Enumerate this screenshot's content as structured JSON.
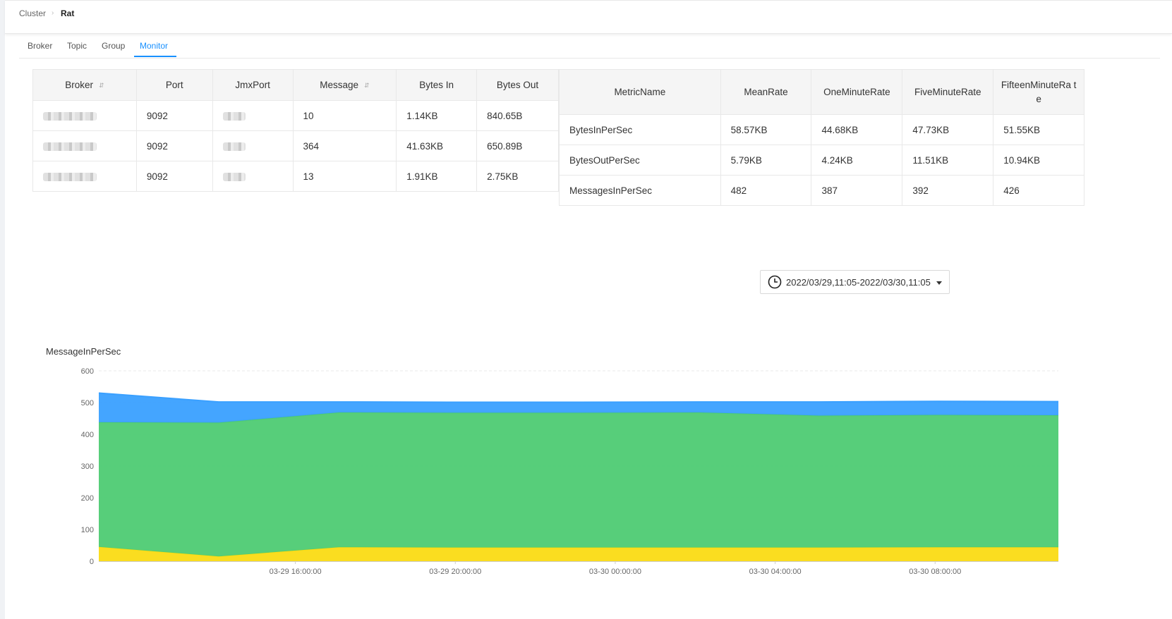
{
  "breadcrumb": {
    "root": "Cluster",
    "separator": "›",
    "current": "Rat"
  },
  "tabs": [
    {
      "label": "Broker"
    },
    {
      "label": "Topic"
    },
    {
      "label": "Group"
    },
    {
      "label": "Monitor",
      "active": true
    }
  ],
  "broker_table": {
    "headers": [
      "Broker",
      "Port",
      "JmxPort",
      "Message",
      "Bytes In",
      "Bytes Out"
    ],
    "rows": [
      {
        "port": "9092",
        "message": "10",
        "bytes_in": "1.14KB",
        "bytes_out": "840.65B"
      },
      {
        "port": "9092",
        "message": "364",
        "bytes_in": "41.63KB",
        "bytes_out": "650.89B"
      },
      {
        "port": "9092",
        "message": "13",
        "bytes_in": "1.91KB",
        "bytes_out": "2.75KB"
      }
    ]
  },
  "metric_table": {
    "headers": [
      "MetricName",
      "MeanRate",
      "OneMinuteRate",
      "FiveMinuteRate",
      "FifteenMinuteRa te"
    ],
    "rows": [
      {
        "name": "BytesInPerSec",
        "mean": "58.57KB",
        "one": "44.68KB",
        "five": "47.73KB",
        "fifteen": "51.55KB"
      },
      {
        "name": "BytesOutPerSec",
        "mean": "5.79KB",
        "one": "4.24KB",
        "five": "11.51KB",
        "fifteen": "10.94KB"
      },
      {
        "name": "MessagesInPerSec",
        "mean": "482",
        "one": "387",
        "five": "392",
        "fifteen": "426"
      }
    ]
  },
  "time_range": {
    "value": "2022/03/29,11:05-2022/03/30,11:05",
    "icon": "clock-icon"
  },
  "chart_title": "MessageInPerSec",
  "chart_data": {
    "type": "area",
    "stacked": true,
    "title": "MessageInPerSec",
    "x": [
      "03-29 11:05",
      "03-29 14:05",
      "03-29 17:05",
      "03-29 20:05",
      "03-29 23:05",
      "03-30 02:05",
      "03-30 05:05",
      "03-30 08:05",
      "03-30 11:05"
    ],
    "x_ticks": [
      "03-29 16:00:00",
      "03-29 20:00:00",
      "03-30 00:00:00",
      "03-30 04:00:00",
      "03-30 08:00:00"
    ],
    "y_ticks": [
      "0",
      "100",
      "200",
      "300",
      "400",
      "500",
      "600"
    ],
    "ylim": [
      0,
      600
    ],
    "series": [
      {
        "values": [
          45,
          15,
          44,
          43,
          43,
          43,
          43,
          44,
          44
        ],
        "color": "#fadb14"
      },
      {
        "values": [
          393,
          422,
          425,
          425,
          425,
          426,
          416,
          417,
          416
        ],
        "color": "#4ecb73"
      },
      {
        "values": [
          92,
          65,
          33,
          33,
          33,
          33,
          43,
          43,
          43
        ],
        "color": "#3aa0ff"
      }
    ],
    "grid": true
  }
}
